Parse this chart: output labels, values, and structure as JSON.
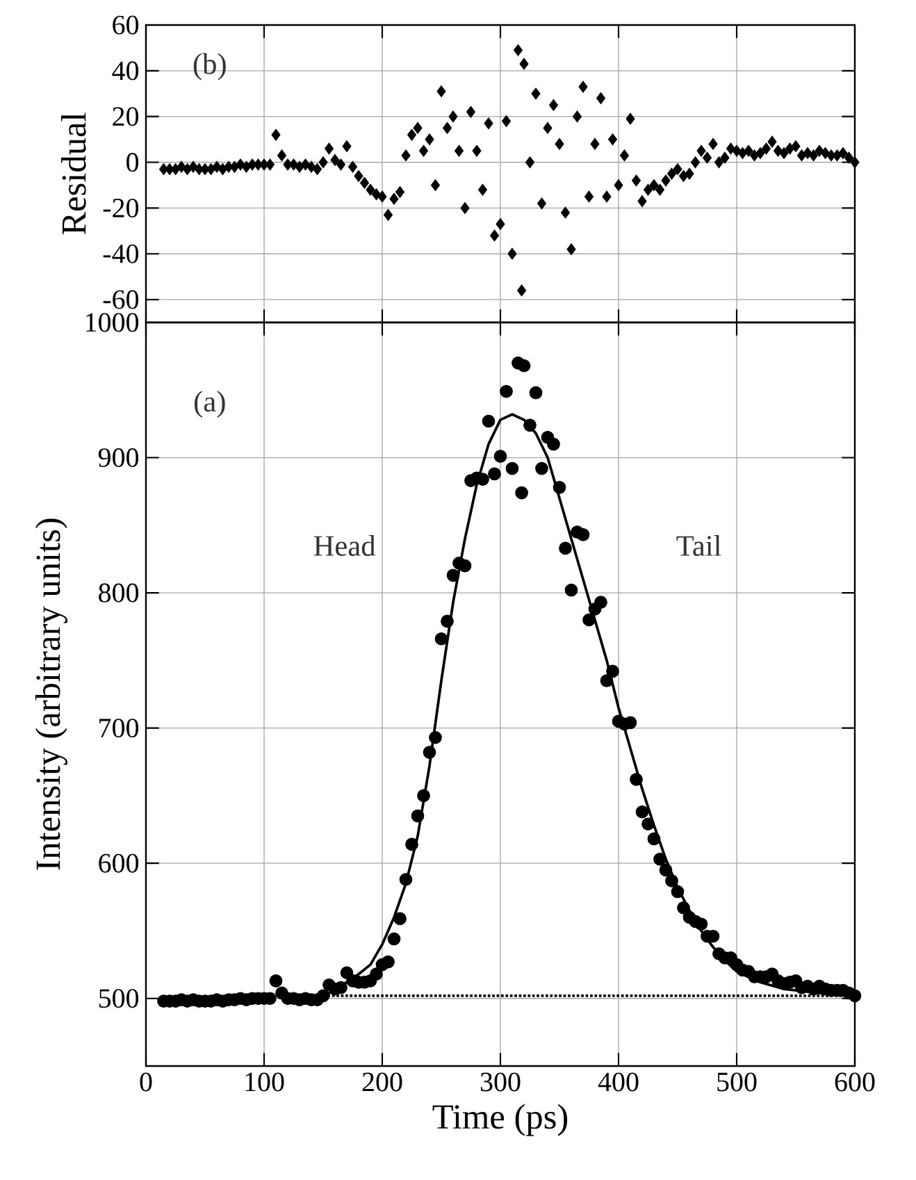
{
  "chart_data": [
    {
      "type": "scatter",
      "ylabel": "Residual",
      "annotations": [
        "(b)"
      ],
      "xlim": [
        0,
        600
      ],
      "xticks": [
        0,
        100,
        200,
        300,
        400,
        500,
        600
      ],
      "ylim": [
        -70,
        60
      ],
      "yticks": [
        -60,
        -40,
        -20,
        0,
        20,
        40,
        60
      ],
      "tick_labels": "y",
      "grid": true,
      "marker": "diamond",
      "series": [
        {
          "color": "#000000",
          "x": [
            15,
            20,
            25,
            30,
            35,
            40,
            45,
            50,
            55,
            60,
            65,
            70,
            75,
            80,
            85,
            90,
            95,
            100,
            105,
            110,
            115,
            120,
            125,
            130,
            135,
            140,
            145,
            150,
            155,
            160,
            165,
            170,
            175,
            180,
            185,
            190,
            195,
            200,
            205,
            210,
            215,
            220,
            225,
            230,
            235,
            240,
            245,
            250,
            255,
            260,
            265,
            270,
            275,
            280,
            285,
            290,
            295,
            300,
            305,
            310,
            315,
            318,
            320,
            325,
            330,
            335,
            340,
            345,
            350,
            355,
            360,
            365,
            370,
            375,
            380,
            385,
            390,
            395,
            400,
            405,
            410,
            415,
            420,
            425,
            430,
            435,
            440,
            445,
            450,
            455,
            460,
            465,
            470,
            475,
            480,
            485,
            490,
            495,
            500,
            505,
            510,
            515,
            520,
            525,
            530,
            535,
            540,
            545,
            550,
            555,
            560,
            565,
            570,
            575,
            580,
            585,
            590,
            595,
            600
          ],
          "values": [
            -3,
            -3,
            -3,
            -2,
            -3,
            -2,
            -3,
            -3,
            -3,
            -2,
            -3,
            -2,
            -2,
            -1,
            -2,
            -1,
            -1,
            -1,
            -1,
            12,
            3,
            -1,
            -1,
            -2,
            -1,
            -2,
            -3,
            0,
            6,
            1,
            -1,
            7,
            -2,
            -6,
            -9,
            -12,
            -14,
            -15,
            -23,
            -16,
            -13,
            3,
            12,
            15,
            5,
            10,
            -10,
            31,
            15,
            20,
            5,
            -20,
            22,
            5,
            -12,
            17,
            -32,
            -27,
            18,
            -40,
            49,
            -56,
            43,
            0,
            30,
            -18,
            15,
            25,
            8,
            -22,
            -38,
            20,
            33,
            -15,
            8,
            28,
            -15,
            10,
            -10,
            3,
            19,
            -8,
            -17,
            -12,
            -10,
            -12,
            -8,
            -5,
            -3,
            -6,
            -5,
            0,
            5,
            2,
            8,
            0,
            2,
            6,
            5,
            4,
            5,
            3,
            4,
            6,
            9,
            5,
            4,
            6,
            7,
            3,
            4,
            3,
            5,
            4,
            3,
            3,
            4,
            2,
            0
          ]
        }
      ]
    },
    {
      "type": "scatter",
      "xlabel": "Time (ps)",
      "ylabel": "Intensity (arbitrary units)",
      "annotations": [
        "(a)",
        "Head",
        "Tail"
      ],
      "xlim": [
        0,
        600
      ],
      "xticks": [
        0,
        100,
        200,
        300,
        400,
        500,
        600
      ],
      "ylim": [
        450,
        1000
      ],
      "yticks": [
        500,
        600,
        700,
        800,
        900,
        1000
      ],
      "grid": true,
      "marker": "circle",
      "series": [
        {
          "color": "#000000",
          "x": [
            15,
            20,
            25,
            30,
            35,
            40,
            45,
            50,
            55,
            60,
            65,
            70,
            75,
            80,
            85,
            90,
            95,
            100,
            105,
            110,
            115,
            120,
            125,
            130,
            135,
            140,
            145,
            150,
            155,
            160,
            165,
            170,
            175,
            180,
            185,
            190,
            195,
            200,
            205,
            210,
            215,
            220,
            225,
            230,
            235,
            240,
            245,
            250,
            255,
            260,
            265,
            270,
            275,
            280,
            285,
            290,
            295,
            300,
            305,
            310,
            315,
            318,
            320,
            325,
            330,
            335,
            340,
            345,
            350,
            355,
            360,
            365,
            370,
            375,
            380,
            385,
            390,
            395,
            400,
            405,
            410,
            415,
            420,
            425,
            430,
            435,
            440,
            445,
            450,
            455,
            460,
            465,
            470,
            475,
            480,
            485,
            490,
            495,
            500,
            505,
            510,
            515,
            520,
            525,
            530,
            535,
            540,
            545,
            550,
            555,
            560,
            565,
            570,
            575,
            580,
            585,
            590,
            595,
            600
          ],
          "values": [
            498,
            498,
            498,
            499,
            498,
            499,
            498,
            498,
            498,
            499,
            498,
            499,
            499,
            500,
            499,
            500,
            500,
            500,
            500,
            513,
            504,
            500,
            500,
            499,
            500,
            499,
            499,
            502,
            510,
            507,
            508,
            519,
            513,
            512,
            512,
            513,
            518,
            525,
            527,
            544,
            559,
            588,
            614,
            635,
            650,
            682,
            693,
            766,
            779,
            813,
            822,
            820,
            883,
            885,
            884,
            927,
            888,
            901,
            949,
            892,
            970,
            874,
            968,
            924,
            948,
            892,
            915,
            910,
            878,
            833,
            802,
            845,
            843,
            780,
            788,
            793,
            735,
            742,
            705,
            703,
            704,
            662,
            638,
            629,
            618,
            603,
            595,
            587,
            579,
            567,
            560,
            557,
            555,
            546,
            546,
            533,
            530,
            530,
            525,
            521,
            520,
            516,
            516,
            516,
            518,
            513,
            511,
            512,
            513,
            508,
            509,
            507,
            509,
            507,
            506,
            506,
            506,
            504,
            502
          ]
        },
        {
          "type": "line",
          "color": "#000000",
          "marker": "none",
          "line_style": "solid",
          "x": [
            150,
            160,
            170,
            180,
            190,
            200,
            210,
            220,
            230,
            240,
            250,
            260,
            270,
            280,
            290,
            300,
            310,
            320,
            330,
            340,
            350,
            360,
            370,
            380,
            390,
            400,
            410,
            420,
            430,
            440,
            450,
            460,
            470,
            480,
            490,
            500,
            520,
            540,
            560,
            580,
            600
          ],
          "values": [
            502,
            506,
            512,
            518,
            525,
            540,
            560,
            585,
            620,
            672,
            735,
            793,
            840,
            880,
            910,
            928,
            932,
            928,
            918,
            900,
            870,
            840,
            810,
            780,
            750,
            715,
            685,
            655,
            628,
            603,
            582,
            565,
            550,
            538,
            528,
            520,
            512,
            507,
            505,
            503,
            502
          ]
        },
        {
          "type": "line",
          "color": "#000000",
          "marker": "none",
          "line_style": "dotted",
          "x": [
            150,
            600
          ],
          "values": [
            502,
            502
          ]
        }
      ]
    }
  ]
}
